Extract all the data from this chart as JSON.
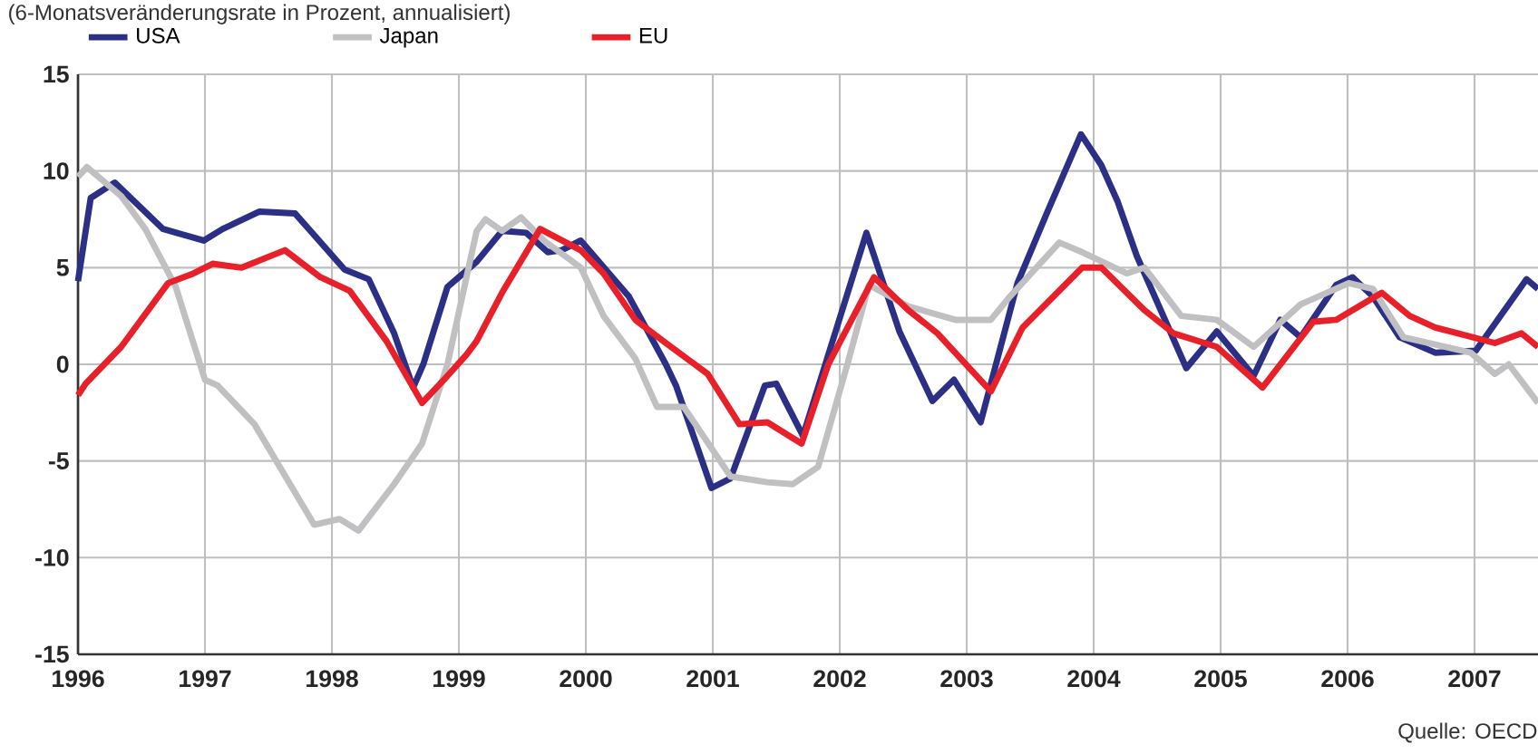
{
  "chart_data": {
    "type": "line",
    "subtitle": "(6-Monatsveränderungsrate in Prozent, annualisiert)",
    "annotations": [
      "Quelle: OECD"
    ],
    "xlim": [
      1996,
      2007.5
    ],
    "xticks": [
      1996,
      1997,
      1998,
      1999,
      2000,
      2001,
      2002,
      2003,
      2004,
      2005,
      2006,
      2007
    ],
    "ylim": [
      -15,
      15
    ],
    "yticks": [
      -15,
      -10,
      -5,
      0,
      5,
      10,
      15
    ],
    "grid": true,
    "legend": "top left",
    "line_style": "solid",
    "marker": "none",
    "series": [
      {
        "name": "USA",
        "color": "#2b2f86",
        "x": [
          1996.0,
          1996.1,
          1996.29,
          1996.67,
          1996.99,
          1997.14,
          1997.43,
          1997.71,
          1998.1,
          1998.29,
          1998.49,
          1998.64,
          1998.72,
          1998.91,
          1999.14,
          1999.34,
          1999.53,
          1999.7,
          1999.81,
          1999.96,
          2000.34,
          2000.63,
          2000.71,
          2000.99,
          2001.14,
          2001.41,
          2001.5,
          2001.71,
          2002.21,
          2002.47,
          2002.73,
          2002.9,
          2003.11,
          2003.4,
          2003.63,
          2003.9,
          2004.06,
          2004.19,
          2004.34,
          2004.73,
          2004.97,
          2005.26,
          2005.47,
          2005.63,
          2005.91,
          2006.04,
          2006.2,
          2006.41,
          2006.69,
          2007.01,
          2007.41,
          2007.5
        ],
        "values": [
          4.3,
          8.6,
          9.4,
          7.0,
          6.4,
          7.0,
          7.9,
          7.8,
          4.9,
          4.4,
          1.6,
          -1.2,
          0,
          4.0,
          5.3,
          6.9,
          6.8,
          5.8,
          5.9,
          6.4,
          3.5,
          0,
          -1.1,
          -6.4,
          -5.9,
          -1.1,
          -1.0,
          -3.7,
          6.8,
          1.7,
          -1.9,
          -0.8,
          -3.0,
          4.2,
          7.8,
          11.9,
          10.3,
          8.4,
          5.6,
          -0.2,
          1.7,
          -0.6,
          2.3,
          1.4,
          4.1,
          4.5,
          3.5,
          1.4,
          0.6,
          0.7,
          4.4,
          3.9
        ]
      },
      {
        "name": "Japan",
        "color": "#c0c0c2",
        "x": [
          1996.0,
          1996.07,
          1996.34,
          1996.53,
          1996.77,
          1997.0,
          1997.1,
          1997.39,
          1997.86,
          1998.06,
          1998.21,
          1998.49,
          1998.71,
          1998.91,
          1999.14,
          1999.21,
          1999.34,
          1999.49,
          1999.67,
          1999.96,
          2000.14,
          2000.39,
          2000.56,
          2000.77,
          2001.14,
          2001.43,
          2001.63,
          2001.83,
          2002.06,
          2002.23,
          2002.54,
          2002.91,
          2003.19,
          2003.34,
          2003.73,
          2003.91,
          2004.26,
          2004.4,
          2004.69,
          2004.97,
          2005.26,
          2005.63,
          2006.01,
          2006.2,
          2006.44,
          2006.97,
          2007.16,
          2007.27,
          2007.5
        ],
        "values": [
          9.7,
          10.2,
          8.7,
          7.0,
          4.0,
          -0.8,
          -1.1,
          -3.1,
          -8.3,
          -8.0,
          -8.6,
          -6.2,
          -4.1,
          0,
          6.9,
          7.5,
          6.9,
          7.6,
          6.4,
          5.0,
          2.5,
          0.3,
          -2.2,
          -2.2,
          -5.8,
          -6.1,
          -6.2,
          -5.3,
          0,
          4.1,
          3.0,
          2.3,
          2.3,
          3.5,
          6.3,
          5.8,
          4.7,
          5.0,
          2.5,
          2.3,
          0.9,
          3.1,
          4.2,
          3.9,
          1.4,
          0.6,
          -0.5,
          0,
          -2.0
        ]
      },
      {
        "name": "EU",
        "color": "#e8202a",
        "x": [
          1996.0,
          1996.06,
          1996.34,
          1996.71,
          1996.91,
          1997.06,
          1997.29,
          1997.63,
          1997.91,
          1998.14,
          1998.43,
          1998.71,
          1998.91,
          1999.06,
          1999.14,
          1999.34,
          1999.64,
          1999.96,
          2000.14,
          2000.39,
          2000.63,
          2000.96,
          2001.21,
          2001.43,
          2001.7,
          2001.91,
          2002.27,
          2002.54,
          2002.77,
          2003.19,
          2003.44,
          2003.91,
          2004.06,
          2004.4,
          2004.63,
          2004.97,
          2005.33,
          2005.73,
          2005.91,
          2006.27,
          2006.49,
          2006.69,
          2006.87,
          2007.16,
          2007.37,
          2007.5
        ],
        "values": [
          -1.6,
          -1.0,
          0.9,
          4.2,
          4.7,
          5.2,
          5.0,
          5.9,
          4.5,
          3.8,
          1.2,
          -2.0,
          -0.6,
          0.5,
          1.2,
          3.7,
          7.0,
          5.9,
          4.7,
          2.3,
          1.1,
          -0.5,
          -3.1,
          -3.0,
          -4.1,
          0,
          4.5,
          2.8,
          1.6,
          -1.4,
          1.9,
          5.0,
          5.0,
          2.8,
          1.6,
          0.9,
          -1.2,
          2.2,
          2.3,
          3.7,
          2.5,
          1.9,
          1.6,
          1.1,
          1.6,
          0.9
        ]
      }
    ]
  }
}
